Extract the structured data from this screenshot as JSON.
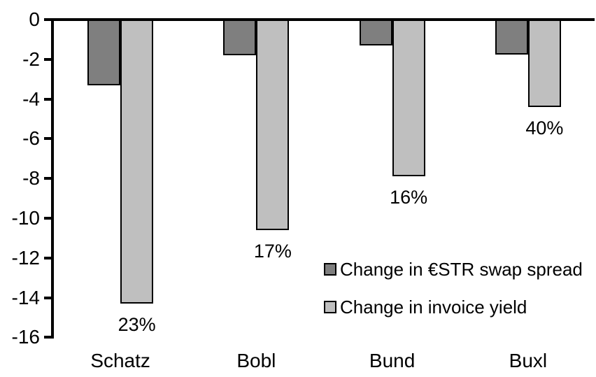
{
  "chart_data": {
    "type": "bar",
    "orientation": "vertical-negative",
    "categories": [
      "Schatz",
      "Bobl",
      "Bund",
      "Buxl"
    ],
    "series": [
      {
        "name": "Change in €STR swap spread",
        "color": "#7f7f7f",
        "values": [
          -3.3,
          -1.8,
          -1.3,
          -1.75
        ]
      },
      {
        "name": "Change in invoice yield",
        "color": "#bfbfbf",
        "values": [
          -14.3,
          -10.6,
          -7.9,
          -4.4
        ],
        "data_labels": [
          "23%",
          "17%",
          "16%",
          "40%"
        ]
      }
    ],
    "y_axis": {
      "min": -16,
      "max": 0,
      "tick_step": 2,
      "tick_labels": [
        "0",
        "-2",
        "-4",
        "-6",
        "-8",
        "-10",
        "-12",
        "-14",
        "-16"
      ]
    },
    "legend": {
      "position": "inside-right",
      "items": [
        {
          "label": "Change in €STR swap spread",
          "color": "#7f7f7f"
        },
        {
          "label": "Change in invoice yield",
          "color": "#bfbfbf"
        }
      ]
    },
    "grid": false,
    "bar_border_color": "#000000",
    "axis_color": "#000000",
    "background_color": "#ffffff",
    "text_color": "#000000"
  }
}
